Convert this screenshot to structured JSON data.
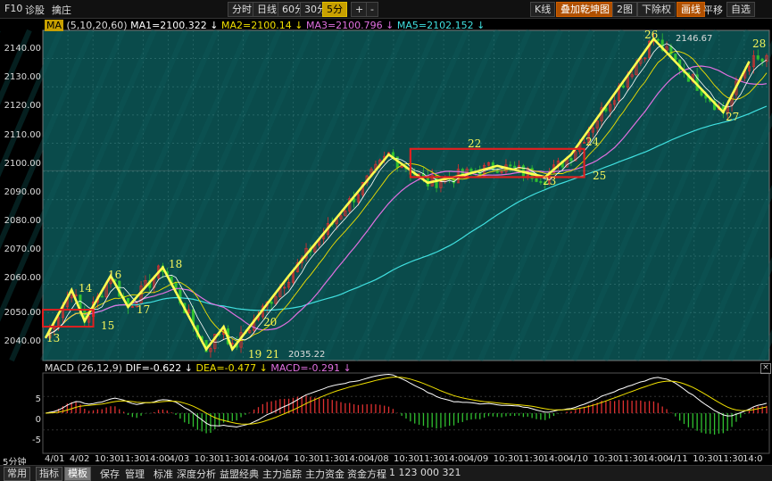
{
  "topbar": {
    "f10": "F10",
    "diag": "诊股",
    "alt": "擒庄",
    "periods": [
      "分时",
      "日线",
      "60分",
      "30分",
      "5分"
    ],
    "active_period": "5分",
    "plus": "+",
    "minus": "-",
    "kline": "K线",
    "overlay": "叠加乾坤图",
    "layout": "2图",
    "rights": "下除权",
    "draw": "画线",
    "pan": "平移",
    "fav": "自选"
  },
  "ma_legend": {
    "label": "MA",
    "params": "(5,10,20,60)",
    "ma1": "MA1=2100.322 ↓",
    "ma2": "MA2=2100.14 ↓",
    "ma3": "MA3=2100.796 ↓",
    "ma5": "MA5=2102.152 ↓"
  },
  "macd_legend": {
    "label": "MACD",
    "params": "(26,12,9)",
    "dif": "DIF=-0.622 ↓",
    "dea": "DEA=-0.477 ↓",
    "macd": "MACD=-0.291 ↓"
  },
  "colors": {
    "bg": "#0a4b4b",
    "grid": "#2f6f6f",
    "ma1": "#ffffff",
    "ma2": "#f0e000",
    "ma3": "#e070e0",
    "ma5": "#40e0e0",
    "wave": "#ffff50",
    "box": "#e02020",
    "up": "#e03030",
    "down": "#30c030"
  },
  "y_ticks": [
    "2140.00",
    "2130.00",
    "2120.00",
    "2110.00",
    "2100.00",
    "2090.00",
    "2080.00",
    "2070.00",
    "2060.00",
    "2050.00",
    "2040.00"
  ],
  "macd_ticks": [
    "5",
    "0",
    "-5"
  ],
  "x_ticks": [
    "4/01",
    "4/02",
    "10:30",
    "11:30",
    "14:00",
    "4/03",
    "10:30",
    "11:30",
    "14:00",
    "4/04",
    "10:30",
    "11:30",
    "14:00",
    "4/08",
    "10:30",
    "11:30",
    "14:00",
    "4/09",
    "10:30",
    "11:30",
    "14:00",
    "4/10",
    "10:30",
    "11:30",
    "14:00",
    "4/11",
    "10:30",
    "11:30",
    "14:0"
  ],
  "period_label": "5分钟",
  "annotations": {
    "high": "2146.67",
    "low": "2035.22"
  },
  "waves": [
    "13",
    "14",
    "15",
    "16",
    "17",
    "18",
    "19",
    "20",
    "21",
    "22",
    "23",
    "24",
    "25",
    "26",
    "27",
    "28"
  ],
  "bottombar": {
    "common": "常用",
    "indicator": "指标",
    "template": "模板",
    "save": "保存",
    "manage": "管理",
    "standard": "标准",
    "depth": "深度分析",
    "classic": "益盟经典",
    "main_track": "主力追踪",
    "main_fund": "主力资金",
    "fund_eq": "资金方程",
    "nums": "1  123  000  321"
  },
  "chart_data": {
    "type": "line",
    "ylim": [
      2033,
      2150
    ],
    "zigzag": [
      [
        0,
        2041
      ],
      [
        6,
        2058
      ],
      [
        9,
        2047
      ],
      [
        15,
        2063
      ],
      [
        19,
        2052
      ],
      [
        27,
        2066
      ],
      [
        37,
        2037
      ],
      [
        41,
        2045
      ],
      [
        43,
        2037
      ],
      [
        56,
        2063
      ],
      [
        79,
        2106
      ],
      [
        88,
        2096
      ],
      [
        97,
        2099
      ],
      [
        104,
        2102
      ],
      [
        115,
        2098
      ],
      [
        121,
        2106
      ],
      [
        140,
        2147
      ],
      [
        156,
        2121
      ],
      [
        162,
        2139
      ]
    ]
  }
}
